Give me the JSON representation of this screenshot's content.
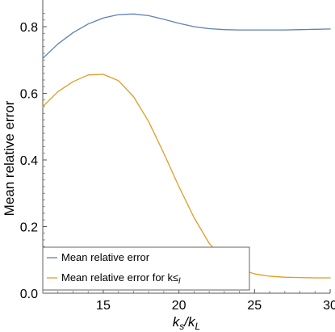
{
  "chart_data": {
    "type": "line",
    "title": "",
    "xlabel": {
      "main": "k",
      "sub_num": "s",
      "sep": "/k",
      "sub_den": "L"
    },
    "ylabel": "Mean relative error",
    "xlim": [
      11,
      30
    ],
    "ylim": [
      0,
      0.88
    ],
    "x_ticks": [
      15,
      20,
      25,
      30
    ],
    "y_ticks": [
      0.0,
      0.2,
      0.4,
      0.6,
      0.8
    ],
    "y_tick_labels": [
      "0.0",
      "0.2",
      "0.4",
      "0.6",
      "0.8"
    ],
    "grid": false,
    "legend_position": "bottom-left",
    "series": [
      {
        "name": "Mean relative error",
        "color": "#5e81b5",
        "x": [
          11,
          12,
          13,
          14,
          15,
          16,
          17,
          18,
          19,
          20,
          21,
          22,
          23,
          24,
          25,
          26,
          27,
          28,
          29,
          30
        ],
        "y": [
          0.705,
          0.748,
          0.782,
          0.808,
          0.826,
          0.836,
          0.838,
          0.833,
          0.822,
          0.81,
          0.8,
          0.794,
          0.791,
          0.79,
          0.79,
          0.79,
          0.79,
          0.791,
          0.792,
          0.793
        ]
      },
      {
        "name": "Mean relative error for k≤",
        "name_sub": "l",
        "color": "#e19c24",
        "x": [
          11,
          12,
          13,
          14,
          15,
          16,
          17,
          18,
          19,
          20,
          21,
          22,
          23,
          24,
          25,
          26,
          27,
          28,
          29,
          30
        ],
        "y": [
          0.56,
          0.605,
          0.635,
          0.655,
          0.657,
          0.638,
          0.59,
          0.515,
          0.42,
          0.32,
          0.227,
          0.15,
          0.1,
          0.073,
          0.058,
          0.051,
          0.048,
          0.047,
          0.046,
          0.046
        ]
      }
    ]
  }
}
